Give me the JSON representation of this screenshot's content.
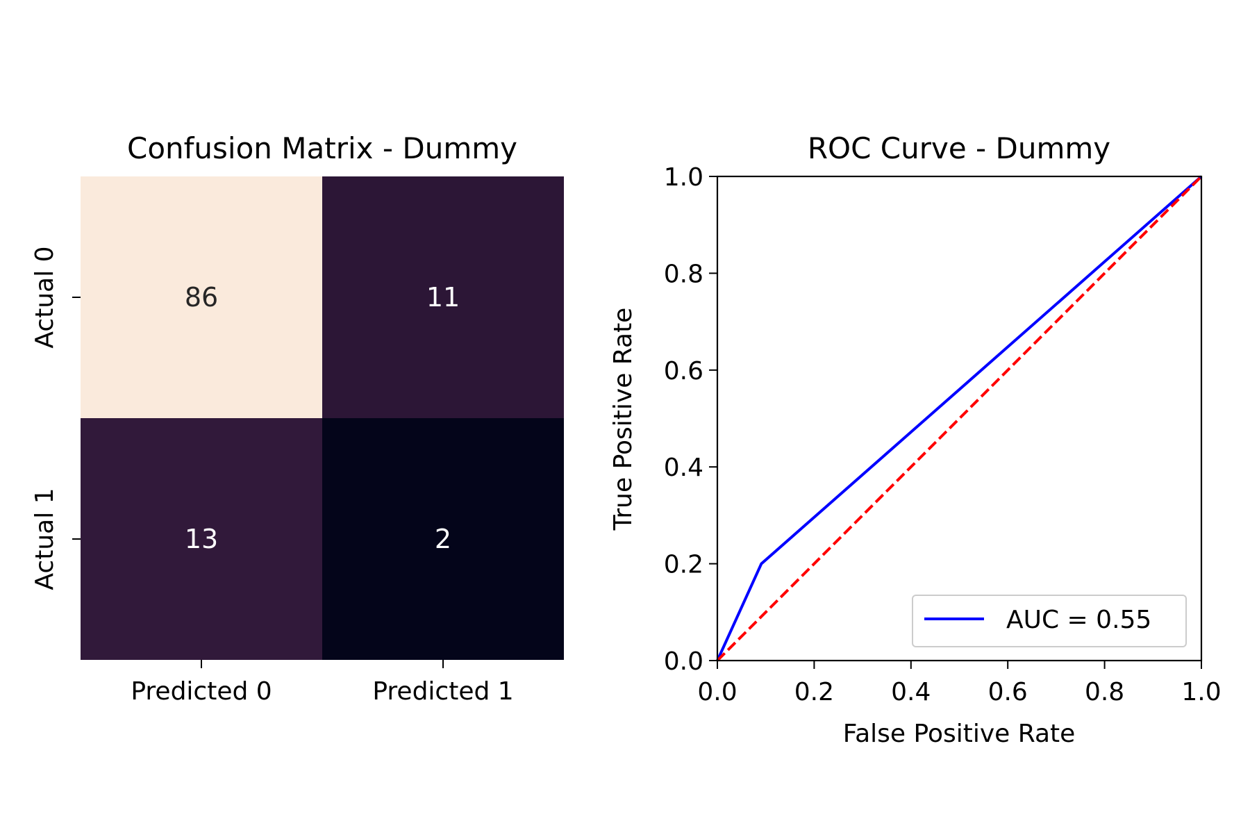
{
  "chart_data": [
    {
      "type": "heatmap",
      "title": "Confusion Matrix - Dummy",
      "row_labels": [
        "Actual 0",
        "Actual 1"
      ],
      "col_labels": [
        "Predicted 0",
        "Predicted 1"
      ],
      "cells": [
        {
          "row": 0,
          "col": 0,
          "value": 86,
          "label": "86",
          "color": "#faeadc",
          "text_color": "#262626"
        },
        {
          "row": 0,
          "col": 1,
          "value": 11,
          "label": "11",
          "color": "#2c1636",
          "text_color": "#ffffff"
        },
        {
          "row": 1,
          "col": 0,
          "value": 13,
          "label": "13",
          "color": "#31193a",
          "text_color": "#ffffff"
        },
        {
          "row": 1,
          "col": 1,
          "value": 2,
          "label": "2",
          "color": "#04051a",
          "text_color": "#ffffff"
        }
      ],
      "colorbar": false
    },
    {
      "type": "line",
      "title": "ROC Curve - Dummy",
      "xlabel": "False Positive Rate",
      "ylabel": "True Positive Rate",
      "xlim": [
        0.0,
        1.0
      ],
      "ylim": [
        0.0,
        1.0
      ],
      "xticks": [
        "0.0",
        "0.2",
        "0.4",
        "0.6",
        "0.8",
        "1.0"
      ],
      "yticks": [
        "0.0",
        "0.2",
        "0.4",
        "0.6",
        "0.8",
        "1.0"
      ],
      "grid": false,
      "legend_position": "lower-right",
      "series": [
        {
          "name": "AUC = 0.55",
          "color": "#0000ff",
          "style": "solid",
          "x": [
            0.0,
            0.0909,
            1.0
          ],
          "y": [
            0.0,
            0.2,
            1.0
          ]
        },
        {
          "color": "#ff0000",
          "style": "dashed",
          "x": [
            0.0,
            1.0
          ],
          "y": [
            0.0,
            1.0
          ]
        }
      ]
    }
  ]
}
